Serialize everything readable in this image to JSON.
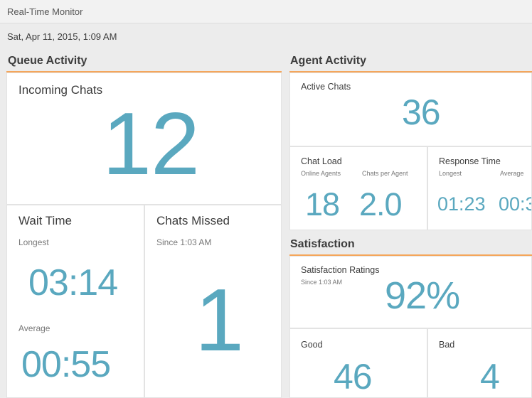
{
  "window": {
    "title": "Real-Time Monitor"
  },
  "datetime": "Sat, Apr 11, 2015, 1:09 AM",
  "queue_activity": {
    "title": "Queue Activity",
    "incoming_chats": {
      "label": "Incoming Chats",
      "value": "12"
    },
    "wait_time": {
      "label": "Wait Time",
      "longest_label": "Longest",
      "longest_value": "03:14",
      "average_label": "Average",
      "average_value": "00:55"
    },
    "chats_missed": {
      "label": "Chats Missed",
      "since": "Since 1:03 AM",
      "value": "1"
    }
  },
  "agent_activity": {
    "title": "Agent Activity",
    "active_chats": {
      "label": "Active Chats",
      "value": "36"
    },
    "chat_load": {
      "label": "Chat Load",
      "online_agents_label": "Online Agents",
      "online_agents_value": "18",
      "chats_per_agent_label": "Chats per Agent",
      "chats_per_agent_value": "2.0"
    },
    "response_time": {
      "label": "Response Time",
      "longest_label": "Longest",
      "longest_value": "01:23",
      "average_label": "Average",
      "average_value": "00:3"
    }
  },
  "satisfaction": {
    "title": "Satisfaction",
    "ratings": {
      "label": "Satisfaction Ratings",
      "since": "Since 1:03 AM",
      "value": "92%"
    },
    "good": {
      "label": "Good",
      "value": "46"
    },
    "bad": {
      "label": "Bad",
      "value": "4"
    }
  },
  "colors": {
    "accent": "#f5a65b",
    "value": "#5aa8bf",
    "text": "#3d3d3d"
  }
}
